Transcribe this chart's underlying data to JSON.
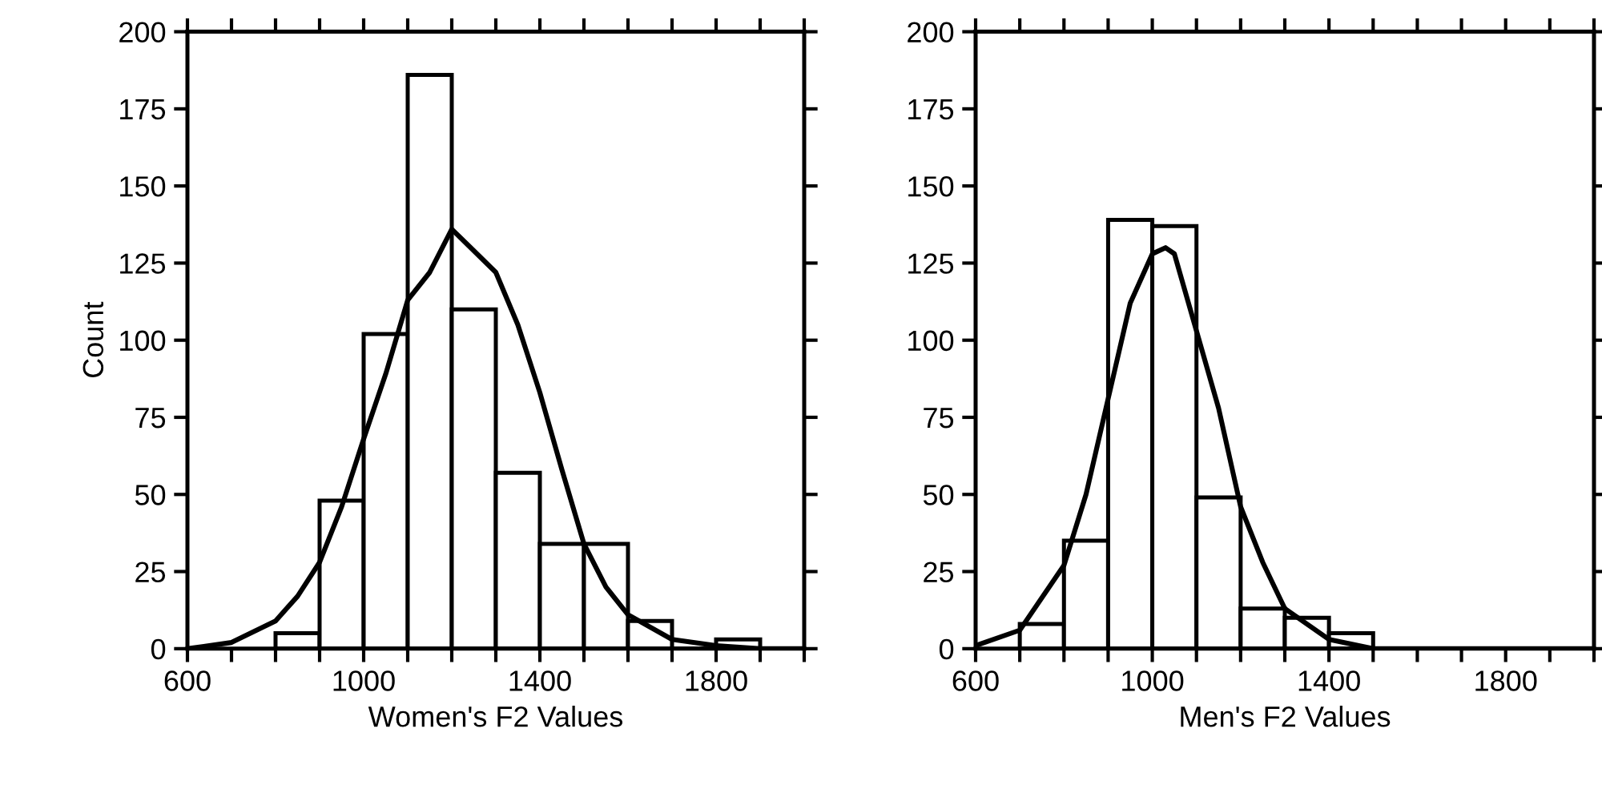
{
  "chart_data": [
    {
      "type": "histogram",
      "xlabel": "Women's F2 Values",
      "ylabel": "Count",
      "color": "#ffffff",
      "bins": [
        800,
        900,
        1000,
        1100,
        1200,
        1300,
        1400,
        1500,
        1600,
        1700,
        1800,
        1900
      ],
      "values": [
        5,
        48,
        102,
        186,
        110,
        57,
        34,
        34,
        9,
        0,
        3
      ],
      "series": [
        {
          "type": "line",
          "color": "#000000",
          "x": [
            600,
            700,
            800,
            850,
            900,
            950,
            1000,
            1050,
            1100,
            1150,
            1200,
            1250,
            1300,
            1350,
            1400,
            1450,
            1500,
            1550,
            1600,
            1700,
            1800,
            1900,
            2000
          ],
          "values": [
            0,
            2,
            9,
            17,
            28,
            46,
            68,
            89,
            113,
            122,
            136,
            129,
            122,
            105,
            83,
            58,
            34,
            20,
            11,
            3,
            1,
            0,
            0
          ]
        }
      ],
      "xlim": [
        600,
        2000
      ],
      "ylim": [
        0,
        200
      ],
      "xticks": [
        600,
        {
          "value": 700,
          "label": null
        },
        {
          "value": 800,
          "label": null
        },
        {
          "value": 900,
          "label": null
        },
        1000,
        {
          "value": 1100,
          "label": null
        },
        {
          "value": 1200,
          "label": null
        },
        {
          "value": 1300,
          "label": null
        },
        1400,
        {
          "value": 1500,
          "label": null
        },
        {
          "value": 1600,
          "label": null
        },
        {
          "value": 1700,
          "label": null
        },
        1800,
        {
          "value": 1900,
          "label": null
        },
        {
          "value": 2000,
          "label": null
        }
      ],
      "yticks": [
        0,
        25,
        50,
        75,
        100,
        125,
        150,
        175,
        200
      ],
      "grid": false
    },
    {
      "type": "histogram",
      "xlabel": "Men's F2 Values",
      "color": "#ffffff",
      "bins": [
        700,
        800,
        900,
        1000,
        1100,
        1200,
        1300,
        1400,
        1500
      ],
      "values": [
        8,
        35,
        139,
        137,
        49,
        13,
        10,
        5
      ],
      "series": [
        {
          "type": "line",
          "color": "#000000",
          "x": [
            600,
            700,
            800,
            850,
            900,
            950,
            1000,
            1030,
            1050,
            1100,
            1150,
            1200,
            1250,
            1300,
            1400,
            1500,
            1600,
            2000
          ],
          "values": [
            1,
            6,
            27,
            50,
            81,
            112,
            128,
            130,
            128,
            103,
            78,
            46,
            28,
            13,
            3,
            0,
            0,
            0
          ]
        }
      ],
      "xlim": [
        600,
        2000
      ],
      "ylim": [
        0,
        200
      ],
      "xticks": [
        600,
        {
          "value": 700,
          "label": null
        },
        {
          "value": 800,
          "label": null
        },
        {
          "value": 900,
          "label": null
        },
        1000,
        {
          "value": 1100,
          "label": null
        },
        {
          "value": 1200,
          "label": null
        },
        {
          "value": 1300,
          "label": null
        },
        1400,
        {
          "value": 1500,
          "label": null
        },
        {
          "value": 1600,
          "label": null
        },
        {
          "value": 1700,
          "label": null
        },
        1800,
        {
          "value": 1900,
          "label": null
        },
        {
          "value": 2000,
          "label": null
        }
      ],
      "yticks": [
        0,
        25,
        50,
        75,
        100,
        125,
        150,
        175,
        200
      ],
      "grid": false
    }
  ]
}
